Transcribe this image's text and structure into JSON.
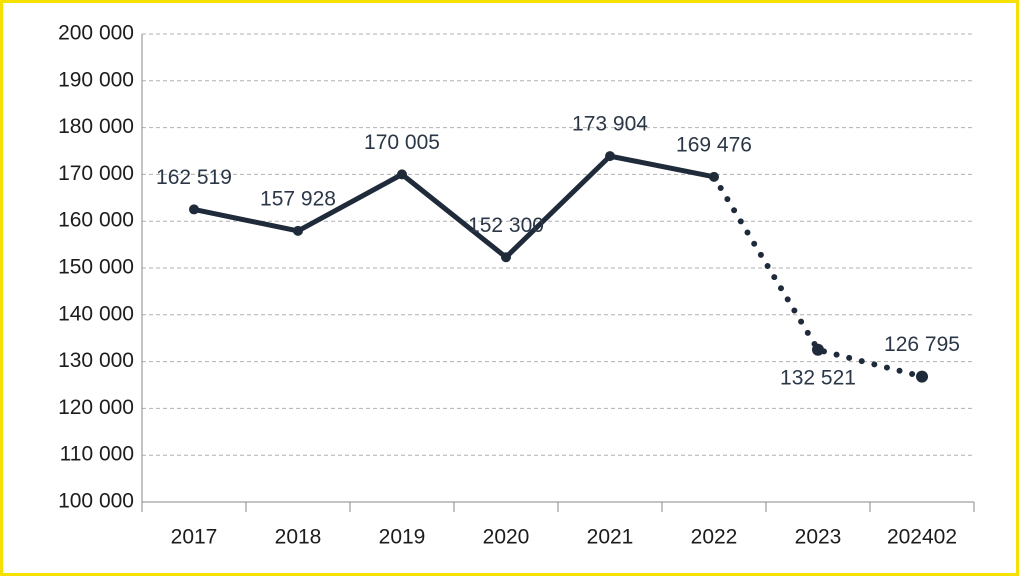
{
  "chart_data": {
    "type": "line",
    "categories": [
      "2017",
      "2018",
      "2019",
      "2020",
      "2021",
      "2022",
      "2023",
      "202402"
    ],
    "series": [
      {
        "color": "#1f2b3a",
        "values": [
          162519,
          157928,
          170005,
          152300,
          173904,
          169476,
          132521,
          126795
        ],
        "value_labels": [
          "162 519",
          "157 928",
          "170 005",
          "152 300",
          "173 904",
          "169 476",
          "132 521",
          "126 795"
        ],
        "segment_styles": [
          "solid",
          "solid",
          "solid",
          "solid",
          "solid",
          "dotted",
          "dotted"
        ]
      }
    ],
    "ylim": [
      100000,
      200000
    ],
    "yticks": [
      {
        "value": 100000,
        "label": "100 000"
      },
      {
        "value": 110000,
        "label": "110 000"
      },
      {
        "value": 120000,
        "label": "120 000"
      },
      {
        "value": 130000,
        "label": "130 000"
      },
      {
        "value": 140000,
        "label": "140 000"
      },
      {
        "value": 150000,
        "label": "150 000"
      },
      {
        "value": 160000,
        "label": "160 000"
      },
      {
        "value": 170000,
        "label": "170 000"
      },
      {
        "value": 180000,
        "label": "180 000"
      },
      {
        "value": 190000,
        "label": "190 000"
      },
      {
        "value": 200000,
        "label": "200 000"
      }
    ],
    "grid": true
  }
}
